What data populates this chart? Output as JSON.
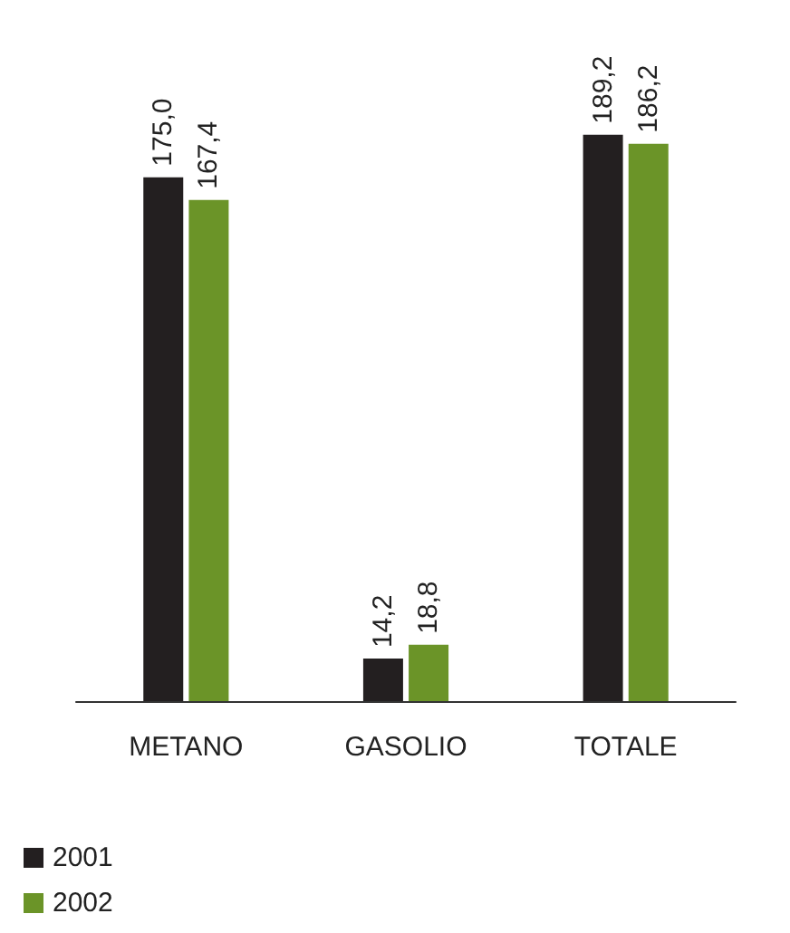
{
  "chart_data": {
    "type": "bar",
    "categories": [
      "METANO",
      "GASOLIO",
      "TOTALE"
    ],
    "series": [
      {
        "name": "2001",
        "color": "#231f20",
        "values": [
          175.0,
          14.2,
          189.2
        ],
        "value_labels": [
          "175,0",
          "14,2",
          "189,2"
        ]
      },
      {
        "name": "2002",
        "color": "#6b9428",
        "values": [
          167.4,
          18.8,
          186.2
        ],
        "value_labels": [
          "167,4",
          "18,8",
          "186,2"
        ]
      }
    ],
    "legend": "bottom left"
  }
}
